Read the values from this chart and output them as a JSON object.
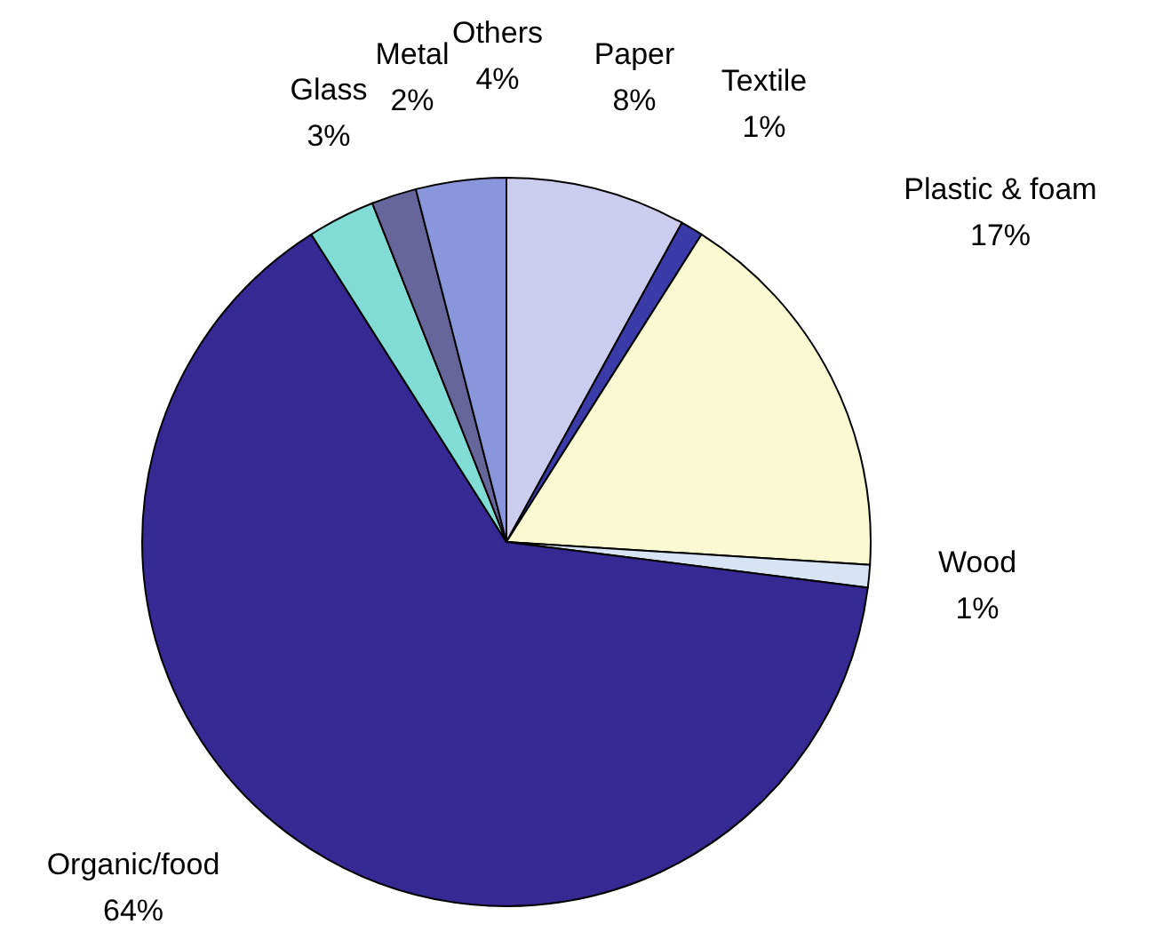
{
  "chart_data": {
    "type": "pie",
    "categories": [
      "Paper",
      "Textile",
      "Plastic  & foam",
      "Wood",
      "Organic/food",
      "Glass",
      "Metal",
      "Others"
    ],
    "values": [
      8,
      1,
      17,
      1,
      64,
      3,
      2,
      4
    ],
    "value_labels": [
      "8%",
      "1%",
      "17%",
      "1%",
      "64%",
      "3%",
      "2%",
      "4%"
    ],
    "colors": [
      "#ccccee",
      "#3a3aa8",
      "#fafad2",
      "#d8e4f4",
      "#372993",
      "#80dcd4",
      "#66669a",
      "#8a96dc"
    ]
  }
}
